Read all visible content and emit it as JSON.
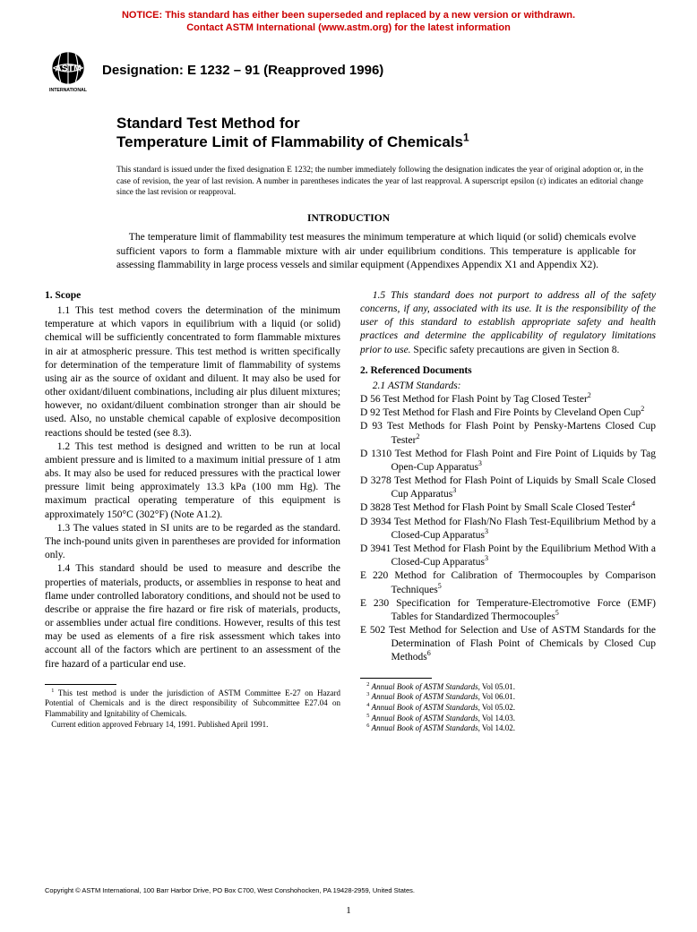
{
  "notice": {
    "line1": "NOTICE: This standard has either been superseded and replaced by a new version or withdrawn.",
    "line2": "Contact ASTM International (www.astm.org) for the latest information",
    "color": "#cc0000"
  },
  "logo": {
    "top_text": "ASTM",
    "bottom_text": "INTERNATIONAL",
    "fill": "#000000"
  },
  "designation": "Designation: E 1232 – 91 (Reapproved 1996)",
  "title": {
    "line1": "Standard Test Method for",
    "line2_pre": "Temperature Limit of Flammability of Chemicals",
    "line2_sup": "1"
  },
  "issue_note": "This standard is issued under the fixed designation E 1232; the number immediately following the designation indicates the year of original adoption or, in the case of revision, the year of last revision. A number in parentheses indicates the year of last reapproval. A superscript epsilon (ε) indicates an editorial change since the last revision or reapproval.",
  "intro": {
    "heading": "INTRODUCTION",
    "body": "The temperature limit of flammability test measures the minimum temperature at which liquid (or solid) chemicals evolve sufficient vapors to form a flammable mixture with air under equilibrium conditions. This temperature is applicable for assessing flammability in large process vessels and similar equipment (Appendixes Appendix X1 and Appendix X2)."
  },
  "sections": {
    "scope": {
      "head": "1. Scope",
      "p1": "1.1 This test method covers the determination of the minimum temperature at which vapors in equilibrium with a liquid (or solid) chemical will be sufficiently concentrated to form flammable mixtures in air at atmospheric pressure. This test method is written specifically for determination of the temperature limit of flammability of systems using air as the source of oxidant and diluent. It may also be used for other oxidant/diluent combinations, including air plus diluent mixtures; however, no oxidant/diluent combination stronger than air should be used. Also, no unstable chemical capable of explosive decomposition reactions should be tested (see 8.3).",
      "p2": "1.2 This test method is designed and written to be run at local ambient pressure and is limited to a maximum initial pressure of 1 atm abs. It may also be used for reduced pressures with the practical lower pressure limit being approximately 13.3 kPa (100 mm Hg). The maximum practical operating temperature of this equipment is approximately 150°C (302°F) (Note A1.2).",
      "p3": "1.3 The values stated in SI units are to be regarded as the standard. The inch-pound units given in parentheses are provided for information only.",
      "p4": "1.4 This standard should be used to measure and describe the properties of materials, products, or assemblies in response to heat and flame under controlled laboratory conditions, and should not be used to describe or appraise the fire hazard or fire risk of materials, products, or assemblies under actual fire conditions. However, results of this test may be used as elements of a fire risk assessment which takes into account all of the factors which are pertinent to an assessment of the fire hazard of a particular end use.",
      "p5_italic": "1.5 This standard does not purport to address all of the safety concerns, if any, associated with its use. It is the responsibility of the user of this standard to establish appropriate safety and health practices and determine the applicability of regulatory limitations prior to use.",
      "p5_tail": " Specific safety precautions are given in Section 8."
    },
    "refs": {
      "head": "2. Referenced Documents",
      "sub": "2.1 ASTM Standards:",
      "items": [
        {
          "t": "D 56  Test Method for Flash Point by Tag Closed Tester",
          "s": "2"
        },
        {
          "t": "D 92  Test Method for Flash and Fire Points by Cleveland Open Cup",
          "s": "2"
        },
        {
          "t": "D 93  Test Methods for Flash Point by Pensky-Martens Closed Cup Tester",
          "s": "2"
        },
        {
          "t": "D 1310  Test Method for Flash Point and Fire Point of Liquids by Tag Open-Cup Apparatus",
          "s": "3"
        },
        {
          "t": "D 3278  Test Method for Flash Point of Liquids by Small Scale Closed Cup Apparatus",
          "s": "3"
        },
        {
          "t": "D 3828  Test Method for Flash Point by Small Scale Closed Tester",
          "s": "4"
        },
        {
          "t": "D 3934  Test Method for Flash/No Flash Test-Equilibrium Method by a Closed-Cup Apparatus",
          "s": "3"
        },
        {
          "t": "D 3941  Test Method for Flash Point by the Equilibrium Method With a Closed-Cup Apparatus",
          "s": "3"
        },
        {
          "t": "E 220  Method for Calibration of Thermocouples by Comparison Techniques",
          "s": "5"
        },
        {
          "t": "E 230  Specification for Temperature-Electromotive Force (EMF) Tables for Standardized Thermocouples",
          "s": "5"
        },
        {
          "t": "E 502  Test Method for Selection and Use of ASTM Standards for the Determination of Flash Point of Chemicals by Closed Cup Methods",
          "s": "6"
        }
      ]
    }
  },
  "footnotes_left": [
    {
      "sup": "1",
      "text": " This test method is under the jurisdiction of ASTM Committee E-27 on Hazard Potential of Chemicals and is the direct responsibility of Subcommittee E27.04 on Flammability and Ignitability of Chemicals."
    },
    {
      "sup": "",
      "text": "Current edition approved February 14, 1991. Published April 1991."
    }
  ],
  "footnotes_right": [
    {
      "sup": "2",
      "pre": " ",
      "it": "Annual Book of ASTM Standards",
      "post": ", Vol 05.01."
    },
    {
      "sup": "3",
      "pre": " ",
      "it": "Annual Book of ASTM Standards",
      "post": ", Vol 06.01."
    },
    {
      "sup": "4",
      "pre": " ",
      "it": "Annual Book of ASTM Standards",
      "post": ", Vol 05.02."
    },
    {
      "sup": "5",
      "pre": " ",
      "it": "Annual Book of ASTM Standards",
      "post": ", Vol 14.03."
    },
    {
      "sup": "6",
      "pre": " ",
      "it": "Annual Book of ASTM Standards",
      "post": ", Vol 14.02."
    }
  ],
  "copyright": "Copyright © ASTM International, 100 Barr Harbor Drive, PO Box C700, West Conshohocken, PA 19428-2959, United States.",
  "page_number": "1"
}
